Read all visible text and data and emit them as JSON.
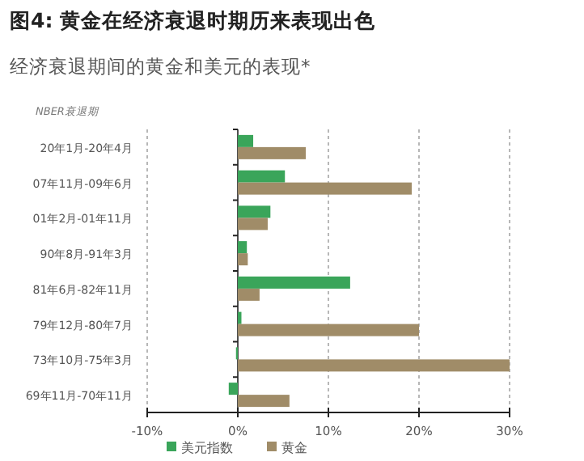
{
  "chart_data": {
    "type": "bar",
    "orientation": "horizontal",
    "title": "图4: 黄金在经济衰退时期历来表现出色",
    "subtitle": "经济衰退期间的黄金和美元的表现*",
    "ylabel": "NBER衰退期",
    "categories": [
      "20年1月-20年4月",
      "07年11月-09年6月",
      "01年2月-01年11月",
      "90年8月-91年3月",
      "81年6月-82年11月",
      "79年12月-80年7月",
      "73年10月-75年3月",
      "69年11月-70年11月"
    ],
    "series": [
      {
        "name": "美元指数",
        "color": "#3aa55a",
        "values": [
          1.7,
          5.2,
          3.6,
          1.0,
          12.4,
          0.4,
          -0.2,
          -1.0
        ]
      },
      {
        "name": "黄金",
        "color": "#a08c68",
        "values": [
          7.5,
          19.2,
          3.3,
          1.1,
          2.4,
          20.0,
          30.0,
          5.7
        ]
      }
    ],
    "xlim": [
      -10,
      30
    ],
    "xticks": [
      {
        "value": -10,
        "label": "-10%"
      },
      {
        "value": 0,
        "label": "0%"
      },
      {
        "value": 10,
        "label": "10%"
      },
      {
        "value": 20,
        "label": "20%"
      },
      {
        "value": 30,
        "label": "30%"
      }
    ],
    "grid": "x",
    "legend": "bottom"
  }
}
